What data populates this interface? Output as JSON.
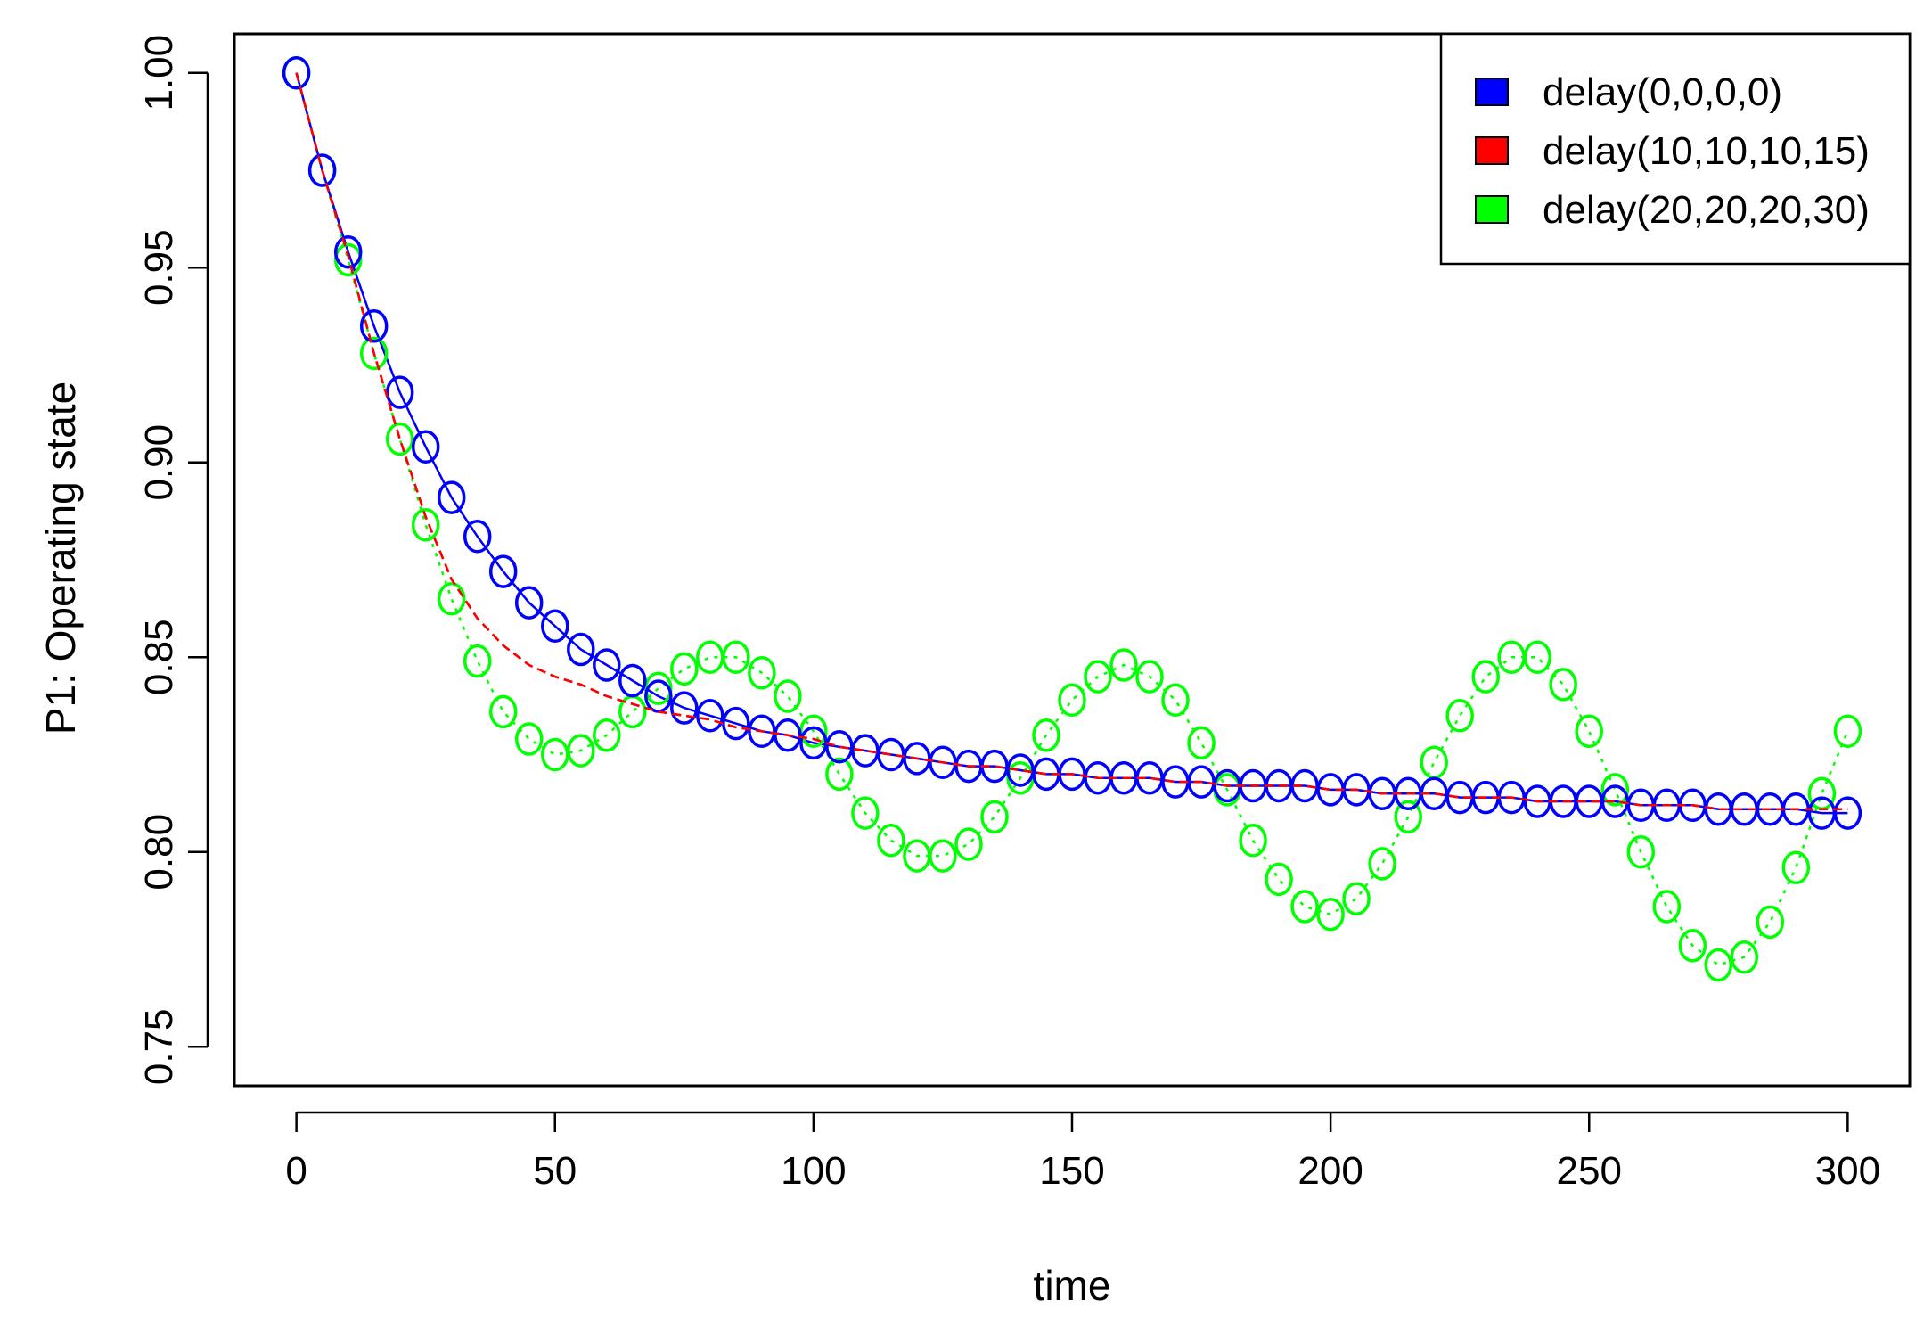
{
  "colors": {
    "delay0": "#0000ff",
    "delay10": "#ff0000",
    "delay20": "#00ff00",
    "axis": "#000000"
  },
  "chart_data": {
    "type": "line",
    "title": "",
    "xlabel": "time",
    "ylabel": "P1: Operating state",
    "xlim": [
      -12,
      312
    ],
    "ylim": [
      0.74,
      1.01
    ],
    "xticks": [
      "0",
      "50",
      "100",
      "150",
      "200",
      "250",
      "300"
    ],
    "yticks": [
      "0.75",
      "0.80",
      "0.85",
      "0.90",
      "0.95",
      "1.00"
    ],
    "grid": false,
    "legend_position": "top-right",
    "x": [
      0,
      5,
      10,
      15,
      20,
      25,
      30,
      35,
      40,
      45,
      50,
      55,
      60,
      65,
      70,
      75,
      80,
      85,
      90,
      95,
      100,
      105,
      110,
      115,
      120,
      125,
      130,
      135,
      140,
      145,
      150,
      155,
      160,
      165,
      170,
      175,
      180,
      185,
      190,
      195,
      200,
      205,
      210,
      215,
      220,
      225,
      230,
      235,
      240,
      245,
      250,
      255,
      260,
      265,
      270,
      275,
      280,
      285,
      290,
      295,
      300
    ],
    "series": [
      {
        "name": "delay(0,0,0,0)",
        "color": "#0000ff",
        "line_style": "solid",
        "markers": "circle",
        "values": [
          1.0,
          0.975,
          0.954,
          0.935,
          0.918,
          0.904,
          0.891,
          0.881,
          0.872,
          0.864,
          0.858,
          0.852,
          0.848,
          0.844,
          0.84,
          0.837,
          0.835,
          0.833,
          0.831,
          0.83,
          0.828,
          0.827,
          0.826,
          0.825,
          0.824,
          0.823,
          0.822,
          0.822,
          0.821,
          0.82,
          0.82,
          0.819,
          0.819,
          0.819,
          0.818,
          0.818,
          0.817,
          0.817,
          0.817,
          0.817,
          0.816,
          0.816,
          0.815,
          0.815,
          0.815,
          0.814,
          0.814,
          0.814,
          0.813,
          0.813,
          0.813,
          0.813,
          0.812,
          0.812,
          0.812,
          0.811,
          0.811,
          0.811,
          0.811,
          0.81,
          0.81
        ]
      },
      {
        "name": "delay(10,10,10,15)",
        "color": "#ff0000",
        "line_style": "dashed",
        "markers": "none",
        "values": [
          1.0,
          0.975,
          0.953,
          0.928,
          0.906,
          0.886,
          0.87,
          0.86,
          0.853,
          0.848,
          0.845,
          0.843,
          0.84,
          0.838,
          0.836,
          0.835,
          0.834,
          0.832,
          0.831,
          0.83,
          0.829,
          0.827,
          0.826,
          0.825,
          0.824,
          0.823,
          0.822,
          0.822,
          0.821,
          0.82,
          0.82,
          0.819,
          0.819,
          0.819,
          0.818,
          0.818,
          0.817,
          0.817,
          0.817,
          0.817,
          0.816,
          0.816,
          0.815,
          0.815,
          0.815,
          0.814,
          0.814,
          0.814,
          0.813,
          0.813,
          0.813,
          0.813,
          0.812,
          0.812,
          0.812,
          0.811,
          0.811,
          0.811,
          0.811,
          0.811,
          0.811
        ]
      },
      {
        "name": "delay(20,20,20,30)",
        "color": "#00ff00",
        "line_style": "dotted",
        "markers": "circle",
        "values": [
          1.0,
          0.975,
          0.952,
          0.928,
          0.906,
          0.884,
          0.865,
          0.849,
          0.836,
          0.829,
          0.825,
          0.826,
          0.83,
          0.836,
          0.842,
          0.847,
          0.85,
          0.85,
          0.846,
          0.84,
          0.831,
          0.82,
          0.81,
          0.803,
          0.799,
          0.799,
          0.802,
          0.809,
          0.819,
          0.83,
          0.839,
          0.845,
          0.848,
          0.845,
          0.839,
          0.828,
          0.816,
          0.803,
          0.793,
          0.786,
          0.784,
          0.788,
          0.797,
          0.809,
          0.823,
          0.835,
          0.845,
          0.85,
          0.85,
          0.843,
          0.831,
          0.816,
          0.8,
          0.786,
          0.776,
          0.771,
          0.773,
          0.782,
          0.796,
          0.815,
          0.831
        ]
      }
    ]
  }
}
